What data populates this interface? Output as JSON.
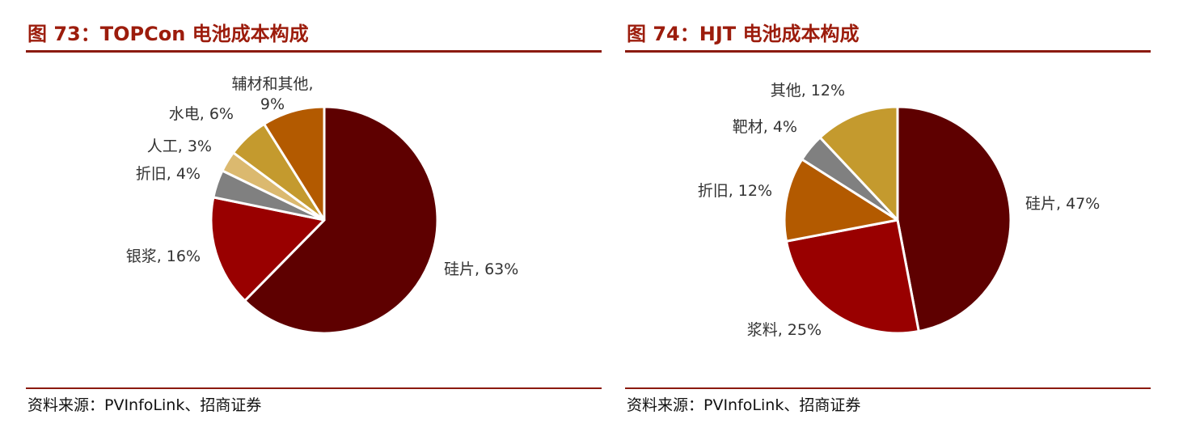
{
  "charts": [
    {
      "title": "图 73：TOPCon 电池成本构成",
      "source": "资料来源：PVInfoLink、招商证券"
    },
    {
      "title": "图 74：HJT 电池成本构成",
      "source": "资料来源：PVInfoLink、招商证券"
    }
  ],
  "chart_data": [
    {
      "type": "pie",
      "title": "图 73：TOPCon 电池成本构成",
      "unit": "%",
      "start": "12 o'clock",
      "direction": "clockwise",
      "slices": [
        {
          "name": "硅片",
          "value": 63,
          "label": "硅片, 63%",
          "color": "#5e0000"
        },
        {
          "name": "银浆",
          "value": 16,
          "label": "银浆, 16%",
          "color": "#990000"
        },
        {
          "name": "折旧",
          "value": 4,
          "label": "折旧, 4%",
          "color": "#808080"
        },
        {
          "name": "人工",
          "value": 3,
          "label": "人工, 3%",
          "color": "#dbb96f"
        },
        {
          "name": "水电",
          "value": 6,
          "label": "水电, 6%",
          "color": "#c49a2e"
        },
        {
          "name": "辅材和其他",
          "value": 9,
          "label": "辅材和其他,\n9%",
          "color": "#b35a00"
        }
      ]
    },
    {
      "type": "pie",
      "title": "图 74：HJT 电池成本构成",
      "unit": "%",
      "start": "12 o'clock",
      "direction": "clockwise",
      "slices": [
        {
          "name": "硅片",
          "value": 47,
          "label": "硅片, 47%",
          "color": "#5e0000"
        },
        {
          "name": "浆料",
          "value": 25,
          "label": "浆料, 25%",
          "color": "#990000"
        },
        {
          "name": "折旧",
          "value": 12,
          "label": "折旧, 12%",
          "color": "#b35a00"
        },
        {
          "name": "靶材",
          "value": 4,
          "label": "靶材, 4%",
          "color": "#808080"
        },
        {
          "name": "其他",
          "value": 12,
          "label": "其他, 12%",
          "color": "#c49a2e"
        }
      ]
    }
  ]
}
